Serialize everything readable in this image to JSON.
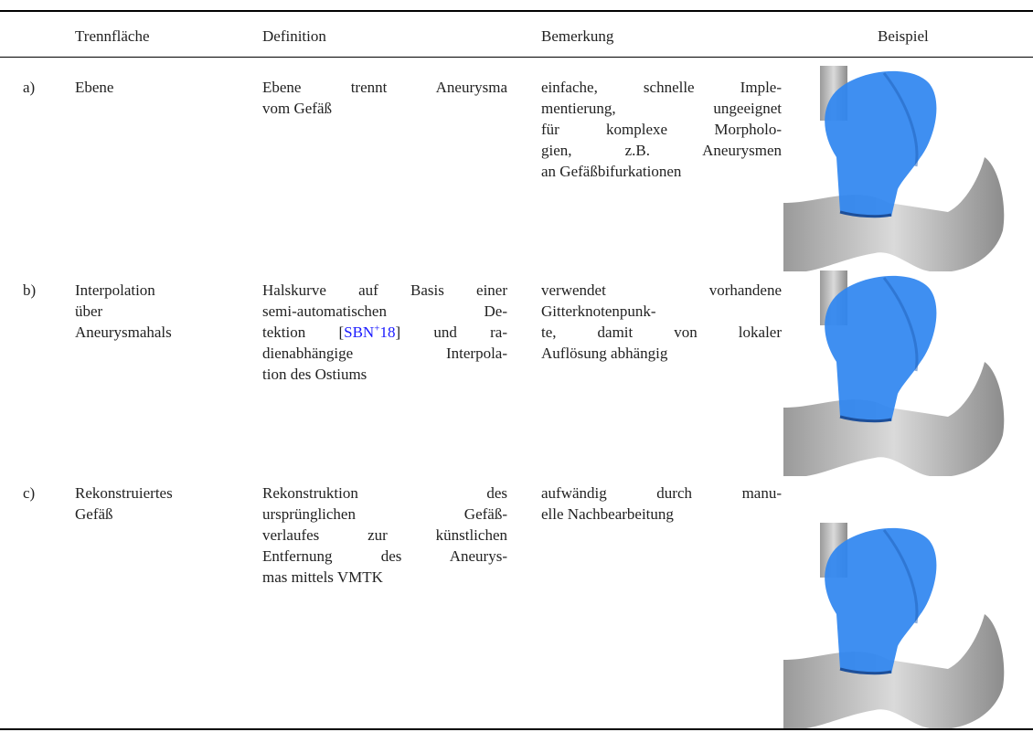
{
  "table": {
    "header": [
      "Trennfläche",
      "Definition",
      "Bemerkung",
      "Beispiel"
    ],
    "rows": [
      {
        "label": "a)",
        "surface": [
          "Ebene"
        ],
        "definition": [
          "Ebene trennt Aneurysma",
          "vom Gefäß"
        ],
        "remark": [
          "einfache, schnelle Imple-",
          "mentierung, ungeeignet",
          "für komplexe Morpholo-",
          "gien, z.B. Aneurysmen",
          "an Gefäßbifurkationen"
        ]
      },
      {
        "label": "b)",
        "surface": [
          "Interpolation",
          "über",
          "Aneurysmahals"
        ],
        "definition": [
          "Halskurve auf Basis einer",
          "semi-automatischen De-",
          [
            "tektion [",
            "SBN",
            "+",
            "18",
            "] und ra-"
          ],
          "dienabhängige Interpola-",
          "tion des Ostiums"
        ],
        "remark": [
          "verwendet vorhandene",
          "Gitterknotenpunk-",
          "te, damit von lokaler",
          "Auflösung abhängig"
        ]
      },
      {
        "label": "c)",
        "surface": [
          "Rekonstruiertes",
          "Gefäß"
        ],
        "definition": [
          "Rekonstruktion des",
          "ursprünglichen Gefäß-",
          "verlaufes zur künstlichen",
          "Entfernung des Aneurys-",
          "mas mittels VMTK"
        ],
        "remark": [
          "aufwändig durch manu-",
          "elle Nachbearbeitung"
        ]
      }
    ]
  }
}
